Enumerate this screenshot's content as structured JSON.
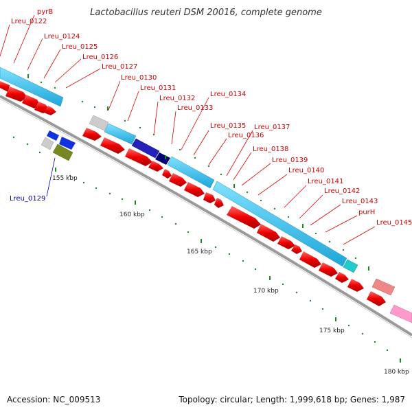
{
  "title": "Lactobacillus reuteri DSM 20016, complete genome",
  "footer": {
    "accession": "Accession: NC_009513",
    "summary": "Topology: circular; Length: 1,999,618 bp; Genes: 1,987"
  },
  "scale_labels": [
    "155 kbp",
    "160 kbp",
    "165 kbp",
    "170 kbp",
    "175 kbp",
    "180 kbp"
  ],
  "gene_labels": {
    "pyrB": "pyrB",
    "lreu_0122": "Lreu_0122",
    "lreu_0124": "Lreu_0124",
    "lreu_0125": "Lreu_0125",
    "lreu_0126": "Lreu_0126",
    "lreu_0127": "Lreu_0127",
    "lreu_0129": "Lreu_0129",
    "lreu_0130": "Lreu_0130",
    "lreu_0131": "Lreu_0131",
    "lreu_0132": "Lreu_0132",
    "lreu_0133": "Lreu_0133",
    "lreu_0134": "Lreu_0134",
    "lreu_0135": "Lreu_0135",
    "lreu_0136": "Lreu_0136",
    "lreu_0137": "Lreu_0137",
    "lreu_0138": "Lreu_0138",
    "lreu_0139": "Lreu_0139",
    "lreu_0140": "Lreu_0140",
    "lreu_0141": "Lreu_0141",
    "lreu_0142": "Lreu_0142",
    "lreu_0143": "Lreu_0143",
    "purH": "purH",
    "lreu_0145": "Lreu_0145"
  },
  "colors": {
    "forward_gene": "#ff0000",
    "reverse_gene": "#ff0000",
    "cds_band": "#33ccee",
    "backbone": "#888888",
    "tick": "#228822",
    "label_red": "#cc0000",
    "label_blue": "#0000aa"
  }
}
